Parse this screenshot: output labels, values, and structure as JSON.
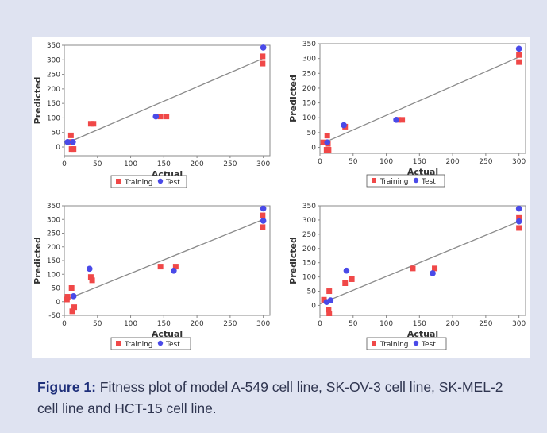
{
  "caption": {
    "label": "Figure 1:",
    "text": " Fitness plot of model A-549 cell line, SK-OV-3 cell line, SK-MEL-2 cell line and HCT-15 cell line."
  },
  "colors": {
    "training": "#f04848",
    "test": "#4a4ae8",
    "fit_line": "#8a8a8a",
    "axis": "#888888",
    "background": "#dfe3f1",
    "caption_label": "#1e2f7a"
  },
  "chart_data": [
    {
      "type": "scatter",
      "xlabel": "Actual",
      "ylabel": "Predicted",
      "xlim": [
        0,
        310
      ],
      "ylim": [
        -30,
        350
      ],
      "xticks": [
        0,
        50,
        100,
        150,
        200,
        250,
        300
      ],
      "yticks": [
        0,
        50,
        100,
        150,
        200,
        250,
        300,
        350
      ],
      "legend": [
        "Training",
        "Test"
      ],
      "legend_position": "bottom-center",
      "grid": false,
      "fit_line": [
        [
          0,
          10
        ],
        [
          300,
          305
        ]
      ],
      "series": [
        {
          "name": "Training",
          "marker": "square",
          "points": [
            [
              8,
              17
            ],
            [
              10,
              40
            ],
            [
              12,
              17
            ],
            [
              11,
              -7
            ],
            [
              14,
              -7
            ],
            [
              40,
              80
            ],
            [
              44,
              80
            ],
            [
              145,
              105
            ],
            [
              154,
              105
            ],
            [
              299,
              312
            ],
            [
              299,
              287
            ]
          ]
        },
        {
          "name": "Test",
          "marker": "circle",
          "points": [
            [
              5,
              17
            ],
            [
              13,
              17
            ],
            [
              138,
              105
            ],
            [
              300,
              342
            ]
          ]
        }
      ]
    },
    {
      "type": "scatter",
      "xlabel": "Actual",
      "ylabel": "Predicted",
      "xlim": [
        0,
        310
      ],
      "ylim": [
        -20,
        350
      ],
      "xticks": [
        0,
        50,
        100,
        150,
        200,
        250,
        300
      ],
      "yticks": [
        0,
        50,
        100,
        150,
        200,
        250,
        300,
        350
      ],
      "legend": [
        "Training",
        "Test"
      ],
      "legend_position": "bottom-center",
      "grid": false,
      "fit_line": [
        [
          0,
          10
        ],
        [
          300,
          305
        ]
      ],
      "series": [
        {
          "name": "Training",
          "marker": "square",
          "points": [
            [
              5,
              17
            ],
            [
              11,
              40
            ],
            [
              12,
              12
            ],
            [
              10,
              -8
            ],
            [
              13,
              -8
            ],
            [
              38,
              70
            ],
            [
              118,
              93
            ],
            [
              124,
              93
            ],
            [
              300,
              312
            ],
            [
              300,
              288
            ]
          ]
        },
        {
          "name": "Test",
          "marker": "circle",
          "points": [
            [
              11,
              17
            ],
            [
              36,
              75
            ],
            [
              115,
              93
            ],
            [
              300,
              333
            ]
          ]
        }
      ]
    },
    {
      "type": "scatter",
      "xlabel": "Actual",
      "ylabel": "Predicted",
      "xlim": [
        0,
        310
      ],
      "ylim": [
        -50,
        350
      ],
      "xticks": [
        0,
        50,
        100,
        150,
        200,
        250,
        300
      ],
      "yticks": [
        -50,
        0,
        50,
        100,
        150,
        200,
        250,
        300,
        350
      ],
      "legend": [
        "Training",
        "Test"
      ],
      "legend_position": "bottom-center",
      "grid": false,
      "fit_line": [
        [
          0,
          5
        ],
        [
          300,
          300
        ]
      ],
      "series": [
        {
          "name": "Training",
          "marker": "square",
          "points": [
            [
              4,
              8
            ],
            [
              5,
              18
            ],
            [
              11,
              50
            ],
            [
              15,
              -20
            ],
            [
              12,
              -35
            ],
            [
              40,
              90
            ],
            [
              42,
              78
            ],
            [
              145,
              128
            ],
            [
              168,
              128
            ],
            [
              299,
              315
            ],
            [
              299,
              272
            ]
          ]
        },
        {
          "name": "Test",
          "marker": "circle",
          "points": [
            [
              14,
              20
            ],
            [
              38,
              120
            ],
            [
              165,
              113
            ],
            [
              300,
              340
            ],
            [
              300,
              295
            ]
          ]
        }
      ]
    },
    {
      "type": "scatter",
      "xlabel": "Actual",
      "ylabel": "Predicted",
      "xlim": [
        0,
        310
      ],
      "ylim": [
        -35,
        350
      ],
      "xticks": [
        0,
        50,
        100,
        150,
        200,
        250,
        300
      ],
      "yticks": [
        0,
        50,
        100,
        150,
        200,
        250,
        300,
        350
      ],
      "legend": [
        "Training",
        "Test"
      ],
      "legend_position": "bottom-center",
      "grid": false,
      "fit_line": [
        [
          0,
          5
        ],
        [
          300,
          295
        ]
      ],
      "series": [
        {
          "name": "Training",
          "marker": "square",
          "points": [
            [
              6,
              20
            ],
            [
              14,
              50
            ],
            [
              13,
              -15
            ],
            [
              14,
              -28
            ],
            [
              38,
              78
            ],
            [
              48,
              92
            ],
            [
              140,
              130
            ],
            [
              173,
              130
            ],
            [
              300,
              310
            ],
            [
              300,
              272
            ]
          ]
        },
        {
          "name": "Test",
          "marker": "circle",
          "points": [
            [
              10,
              12
            ],
            [
              16,
              18
            ],
            [
              40,
              122
            ],
            [
              170,
              113
            ],
            [
              300,
              340
            ],
            [
              300,
              295
            ]
          ]
        }
      ]
    }
  ]
}
